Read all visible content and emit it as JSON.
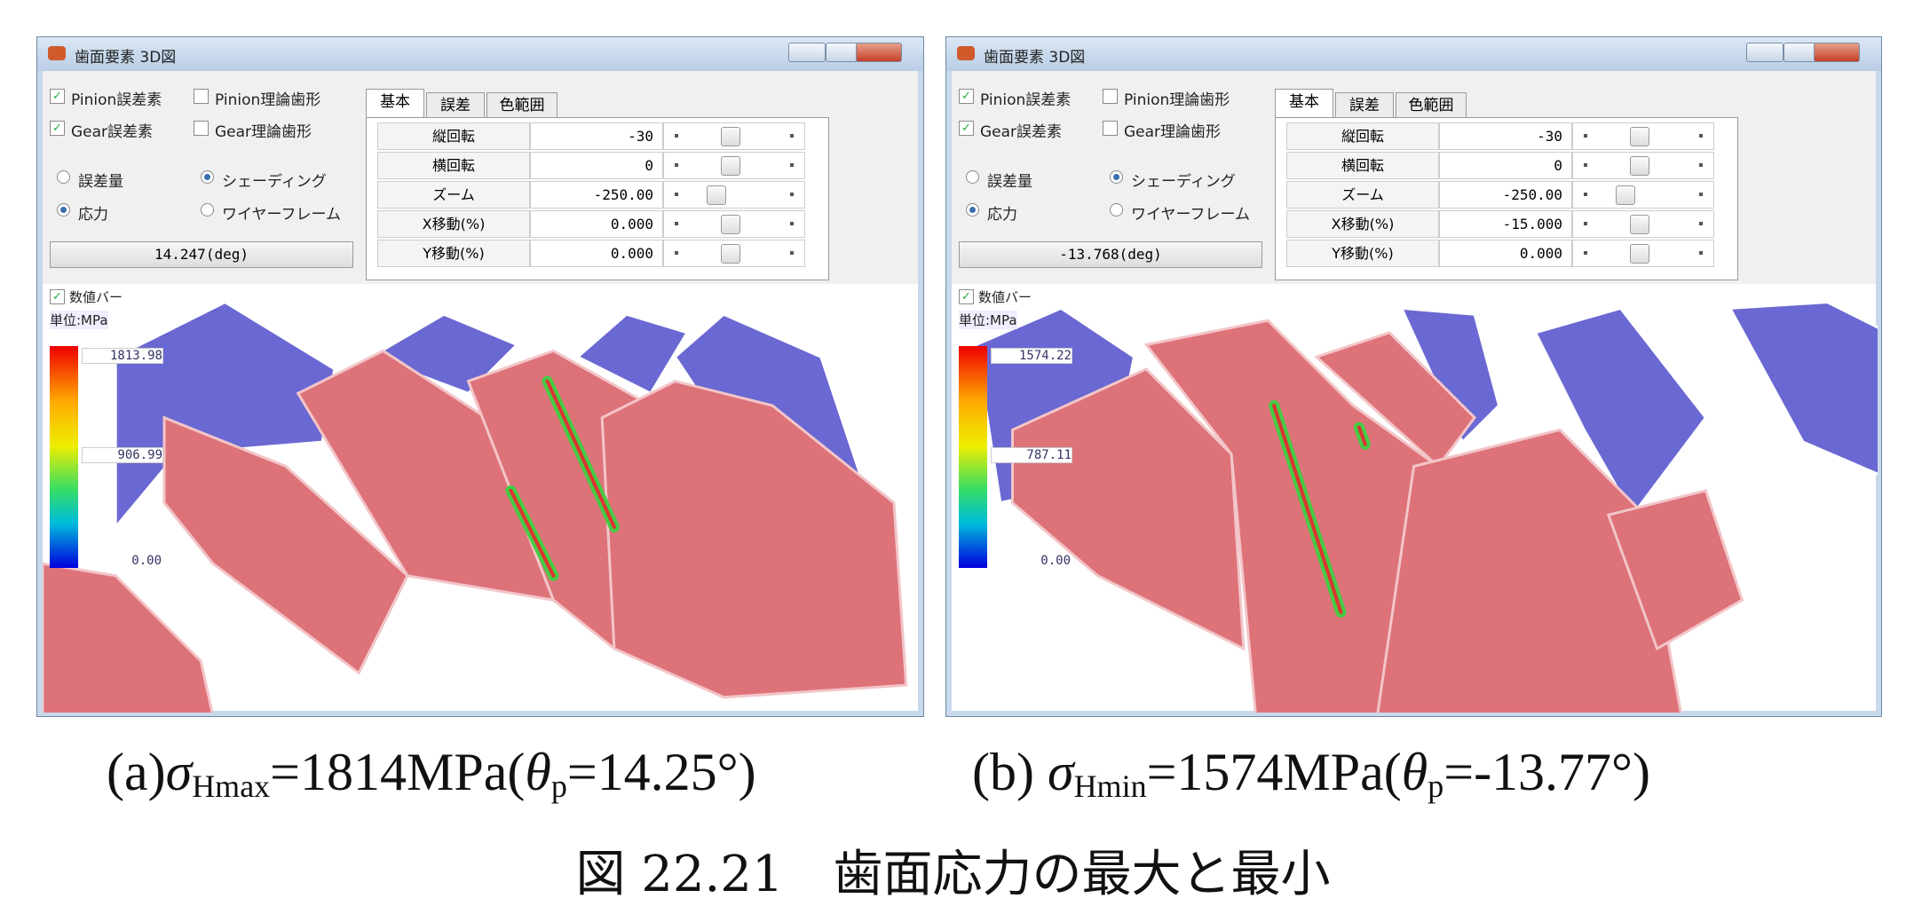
{
  "windows": [
    {
      "title": "歯面要素 3D図",
      "checkboxes": [
        {
          "label": "Pinion誤差素",
          "checked": true
        },
        {
          "label": "Pinion理論歯形",
          "checked": false
        },
        {
          "label": "Gear誤差素",
          "checked": true
        },
        {
          "label": "Gear理論歯形",
          "checked": false
        }
      ],
      "radios": [
        {
          "label": "誤差量",
          "checked": false
        },
        {
          "label": "シェーディング",
          "checked": true
        },
        {
          "label": "応力",
          "checked": true
        },
        {
          "label": "ワイヤーフレーム",
          "checked": false
        }
      ],
      "dropdown": "14.247(deg)",
      "tabs": [
        "基本",
        "誤差",
        "色範囲"
      ],
      "rows": [
        {
          "label": "縦回転",
          "value": "-30"
        },
        {
          "label": "横回転",
          "value": "0"
        },
        {
          "label": "ズーム",
          "value": "-250.00"
        },
        {
          "label": "X移動(%)",
          "value": "0.000"
        },
        {
          "label": "Y移動(%)",
          "value": "0.000"
        }
      ],
      "bar_checkbox": "数値バー",
      "unit": "単位:MPa",
      "bar_labels": {
        "max": "1813.98",
        "mid": "906.99",
        "min": "0.00"
      }
    },
    {
      "title": "歯面要素 3D図",
      "checkboxes": [
        {
          "label": "Pinion誤差素",
          "checked": true
        },
        {
          "label": "Pinion理論歯形",
          "checked": false
        },
        {
          "label": "Gear誤差素",
          "checked": true
        },
        {
          "label": "Gear理論歯形",
          "checked": false
        }
      ],
      "radios": [
        {
          "label": "誤差量",
          "checked": false
        },
        {
          "label": "シェーディング",
          "checked": true
        },
        {
          "label": "応力",
          "checked": true
        },
        {
          "label": "ワイヤーフレーム",
          "checked": false
        }
      ],
      "dropdown": "-13.768(deg)",
      "tabs": [
        "基本",
        "誤差",
        "色範囲"
      ],
      "rows": [
        {
          "label": "縦回転",
          "value": "-30"
        },
        {
          "label": "横回転",
          "value": "0"
        },
        {
          "label": "ズーム",
          "value": "-250.00"
        },
        {
          "label": "X移動(%)",
          "value": "-15.000"
        },
        {
          "label": "Y移動(%)",
          "value": "0.000"
        }
      ],
      "bar_checkbox": "数値バー",
      "unit": "単位:MPa",
      "bar_labels": {
        "max": "1574.22",
        "mid": "787.11",
        "min": "0.00"
      }
    }
  ],
  "captions": [
    {
      "prefix": "(a)",
      "symbol": "σ",
      "symbol_sub": "Hmax",
      "value": "=1814MPa(",
      "angle_symbol": "θ",
      "angle_sub": "p",
      "angle_value": "=14.25°)"
    },
    {
      "prefix": "(b) ",
      "symbol": "σ",
      "symbol_sub": "Hmin",
      "value": "=1574MPa(",
      "angle_symbol": "θ",
      "angle_sub": "p",
      "angle_value": "=-13.77°)"
    }
  ],
  "figure_caption": "図 22.21　歯面応力の最大と最小"
}
